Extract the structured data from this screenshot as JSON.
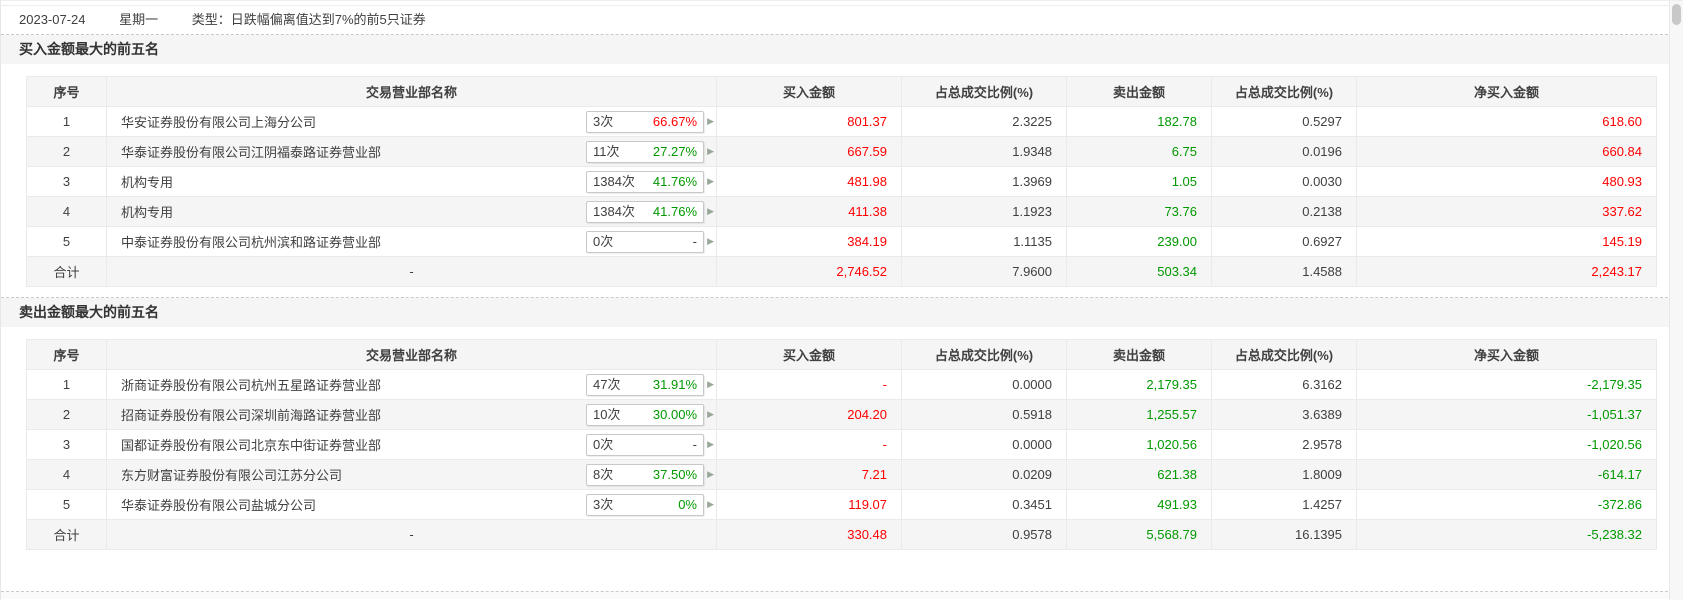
{
  "date_bar": {
    "date": "2023-07-24",
    "weekday": "星期一",
    "type": "类型：日跌幅偏离值达到7%的前5只证券"
  },
  "columns": [
    "序号",
    "交易营业部名称",
    "买入金额",
    "占总成交比例(%)",
    "卖出金额",
    "占总成交比例(%)",
    "净买入金额"
  ],
  "colors": {
    "red": "#ff0000",
    "green": "#009900",
    "plain": "#404040"
  },
  "badge_arrow_icon": "▶",
  "sections": [
    {
      "title": "买入金额最大的前五名",
      "rows": [
        {
          "rank": "1",
          "broker": "华安证券股份有限公司上海分公司",
          "times": "3次",
          "pct": "66.67%",
          "pct_color": "red",
          "buy": "801.37",
          "buy_ratio": "2.3225",
          "sell": "182.78",
          "sell_ratio": "0.5297",
          "net": "618.60",
          "net_color": "red"
        },
        {
          "rank": "2",
          "broker": "华泰证券股份有限公司江阴福泰路证券营业部",
          "times": "11次",
          "pct": "27.27%",
          "pct_color": "green",
          "buy": "667.59",
          "buy_ratio": "1.9348",
          "sell": "6.75",
          "sell_ratio": "0.0196",
          "net": "660.84",
          "net_color": "red"
        },
        {
          "rank": "3",
          "broker": "机构专用",
          "times": "1384次",
          "pct": "41.76%",
          "pct_color": "green",
          "buy": "481.98",
          "buy_ratio": "1.3969",
          "sell": "1.05",
          "sell_ratio": "0.0030",
          "net": "480.93",
          "net_color": "red"
        },
        {
          "rank": "4",
          "broker": "机构专用",
          "times": "1384次",
          "pct": "41.76%",
          "pct_color": "green",
          "buy": "411.38",
          "buy_ratio": "1.1923",
          "sell": "73.76",
          "sell_ratio": "0.2138",
          "net": "337.62",
          "net_color": "red"
        },
        {
          "rank": "5",
          "broker": "中泰证券股份有限公司杭州滨和路证券营业部",
          "times": "0次",
          "pct": "-",
          "pct_color": "plain",
          "buy": "384.19",
          "buy_ratio": "1.1135",
          "sell": "239.00",
          "sell_ratio": "0.6927",
          "net": "145.19",
          "net_color": "red"
        }
      ],
      "total": {
        "rank": "合计",
        "broker": "-",
        "buy": "2,746.52",
        "buy_ratio": "7.9600",
        "sell": "503.34",
        "sell_ratio": "1.4588",
        "net": "2,243.17",
        "net_color": "red"
      }
    },
    {
      "title": "卖出金额最大的前五名",
      "rows": [
        {
          "rank": "1",
          "broker": "浙商证券股份有限公司杭州五星路证券营业部",
          "times": "47次",
          "pct": "31.91%",
          "pct_color": "green",
          "buy": "-",
          "buy_ratio": "0.0000",
          "sell": "2,179.35",
          "sell_ratio": "6.3162",
          "net": "-2,179.35",
          "net_color": "green"
        },
        {
          "rank": "2",
          "broker": "招商证券股份有限公司深圳前海路证券营业部",
          "times": "10次",
          "pct": "30.00%",
          "pct_color": "green",
          "buy": "204.20",
          "buy_ratio": "0.5918",
          "sell": "1,255.57",
          "sell_ratio": "3.6389",
          "net": "-1,051.37",
          "net_color": "green"
        },
        {
          "rank": "3",
          "broker": "国都证券股份有限公司北京东中街证券营业部",
          "times": "0次",
          "pct": "-",
          "pct_color": "plain",
          "buy": "-",
          "buy_ratio": "0.0000",
          "sell": "1,020.56",
          "sell_ratio": "2.9578",
          "net": "-1,020.56",
          "net_color": "green"
        },
        {
          "rank": "4",
          "broker": "东方财富证券股份有限公司江苏分公司",
          "times": "8次",
          "pct": "37.50%",
          "pct_color": "green",
          "buy": "7.21",
          "buy_ratio": "0.0209",
          "sell": "621.38",
          "sell_ratio": "1.8009",
          "net": "-614.17",
          "net_color": "green"
        },
        {
          "rank": "5",
          "broker": "华泰证券股份有限公司盐城分公司",
          "times": "3次",
          "pct": "0%",
          "pct_color": "green",
          "buy": "119.07",
          "buy_ratio": "0.3451",
          "sell": "491.93",
          "sell_ratio": "1.4257",
          "net": "-372.86",
          "net_color": "green"
        }
      ],
      "total": {
        "rank": "合计",
        "broker": "-",
        "buy": "330.48",
        "buy_ratio": "0.9578",
        "sell": "5,568.79",
        "sell_ratio": "16.1395",
        "net": "-5,238.32",
        "net_color": "green"
      }
    }
  ]
}
